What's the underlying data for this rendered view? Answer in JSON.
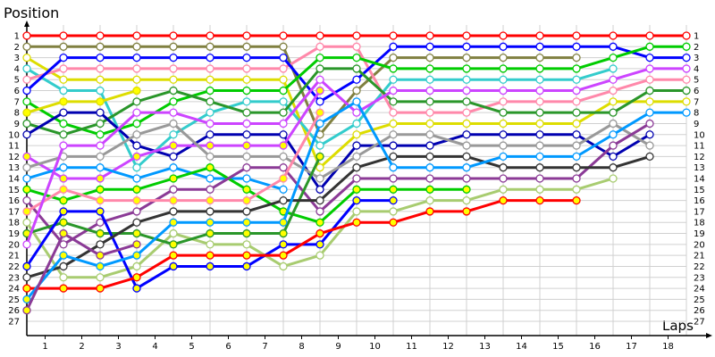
{
  "chart_data": {
    "type": "line",
    "title": "",
    "ylabel": "Position",
    "xlabel": "Laps",
    "x_ticks": [
      1,
      2,
      3,
      4,
      5,
      6,
      7,
      8,
      9,
      10,
      11,
      12,
      13,
      14,
      15,
      16,
      17,
      18
    ],
    "y_ticks": [
      1,
      2,
      3,
      4,
      5,
      6,
      7,
      8,
      9,
      10,
      11,
      12,
      13,
      14,
      15,
      16,
      17,
      18,
      19,
      20,
      21,
      22,
      23,
      24,
      25,
      26,
      27
    ],
    "xlim": [
      0,
      18
    ],
    "ylim": [
      1,
      27
    ],
    "y_inverted": true,
    "grid": true,
    "marker_fill_default": "#ffffff",
    "marker_fill_highlight": "#ffff00",
    "series": [
      {
        "color": "#ff0000",
        "filled": false,
        "values": [
          1,
          1,
          1,
          1,
          1,
          1,
          1,
          1,
          1,
          1,
          1,
          1,
          1,
          1,
          1,
          1,
          1,
          1,
          1
        ]
      },
      {
        "color": "#808040",
        "filled": false,
        "values": [
          2,
          2,
          2,
          2,
          2,
          2,
          2,
          2,
          10,
          6,
          3,
          3,
          3,
          3,
          3,
          3
        ]
      },
      {
        "color": "#dddd00",
        "filled": false,
        "values": [
          3,
          5,
          5,
          5,
          5,
          5,
          5,
          5,
          13,
          10,
          9,
          9,
          9,
          9,
          9,
          9,
          7,
          7,
          7
        ]
      },
      {
        "color": "#33cccc",
        "filled": false,
        "values": [
          4,
          6,
          6,
          13,
          10,
          8,
          7,
          7,
          11,
          9,
          5,
          5,
          5,
          5,
          5,
          5,
          4
        ]
      },
      {
        "color": "#ff88aa",
        "filled": false,
        "values": [
          5,
          4,
          4,
          4,
          4,
          4,
          4,
          4,
          2,
          2,
          8,
          8,
          8,
          7,
          7,
          7,
          6,
          5,
          5
        ]
      },
      {
        "color": "#0000ff",
        "filled": false,
        "values": [
          6,
          3,
          3,
          3,
          3,
          3,
          3,
          3,
          7,
          5,
          2,
          2,
          2,
          2,
          2,
          2,
          2,
          3,
          3
        ]
      },
      {
        "color": "#00cc00",
        "filled": false,
        "values": [
          7,
          9,
          10,
          9,
          7,
          6,
          6,
          6,
          3,
          3,
          4,
          4,
          4,
          4,
          4,
          4,
          3,
          2,
          2
        ]
      },
      {
        "color": "#dddd00",
        "filled": true,
        "values": [
          8,
          7,
          7,
          6
        ]
      },
      {
        "color": "#2a962a",
        "filled": false,
        "values": [
          9,
          10,
          9,
          7,
          6,
          7,
          8,
          8,
          4,
          4,
          7,
          7,
          7,
          8,
          8,
          8,
          8,
          6,
          6
        ]
      },
      {
        "color": "#0000b0",
        "filled": false,
        "values": [
          10,
          8,
          8,
          11,
          12,
          10,
          10,
          10,
          15,
          11,
          11,
          11,
          10,
          10,
          10,
          10,
          12,
          10
        ]
      },
      {
        "color": "#cc44ff",
        "filled": true,
        "values": [
          12,
          14,
          14,
          12,
          11,
          11,
          11,
          11,
          6
        ]
      },
      {
        "color": "#999999",
        "filled": false,
        "values": [
          13,
          12,
          12,
          10,
          9,
          12,
          12,
          12,
          14,
          12,
          10,
          10,
          11,
          11,
          11,
          11,
          9,
          11
        ]
      },
      {
        "color": "#0099ff",
        "filled": false,
        "values": [
          14,
          13,
          13,
          14,
          13,
          14,
          14,
          15
        ]
      },
      {
        "color": "#00cc00",
        "filled": true,
        "values": [
          15,
          16,
          15,
          15,
          14,
          13,
          15,
          17,
          18,
          15,
          15,
          15,
          15
        ]
      },
      {
        "color": "#8b3a96",
        "filled": false,
        "values": [
          16,
          20,
          18,
          17,
          15,
          15,
          13,
          13,
          17,
          14,
          14,
          14,
          14,
          14,
          14,
          14,
          11,
          9
        ]
      },
      {
        "color": "#ff88aa",
        "filled": true,
        "values": [
          17,
          15,
          16,
          16,
          16,
          16,
          16,
          14,
          8
        ]
      },
      {
        "color": "#a8cc70",
        "filled": false,
        "values": [
          18,
          23,
          23,
          22,
          19,
          20,
          20,
          22,
          21,
          17,
          17,
          16,
          16,
          15,
          15,
          15,
          14
        ]
      },
      {
        "color": "#2a962a",
        "filled": true,
        "values": [
          19,
          18,
          19,
          19,
          20,
          19,
          19,
          19,
          12
        ]
      },
      {
        "color": "#cc44ff",
        "filled": false,
        "values": [
          20,
          11,
          11,
          8,
          8,
          9,
          9,
          9,
          5,
          8,
          6,
          6,
          6,
          6,
          6,
          6,
          5,
          4,
          4
        ]
      },
      {
        "color": "#0000ff",
        "filled": true,
        "values": [
          22,
          17,
          17,
          24,
          22,
          22,
          22,
          20,
          20,
          16,
          16
        ]
      },
      {
        "color": "#333333",
        "filled": false,
        "values": [
          23,
          22,
          20,
          18,
          17,
          17,
          17,
          16,
          16,
          13,
          12,
          12,
          12,
          13,
          13,
          13,
          13,
          12
        ]
      },
      {
        "color": "#ff0000",
        "filled": true,
        "values": [
          24,
          24,
          24,
          23,
          21,
          21,
          21,
          21,
          19,
          18,
          18,
          17,
          17,
          16,
          16,
          16
        ]
      },
      {
        "color": "#0099ff",
        "filled": true,
        "filled_through_lap": 7,
        "values": [
          25,
          21,
          22,
          21,
          18,
          18,
          18,
          18,
          9,
          7,
          13,
          13,
          13,
          12,
          12,
          12,
          10,
          8,
          8
        ]
      },
      {
        "color": "#8b3a96",
        "filled": true,
        "values": [
          26,
          19,
          21,
          20
        ]
      }
    ]
  }
}
